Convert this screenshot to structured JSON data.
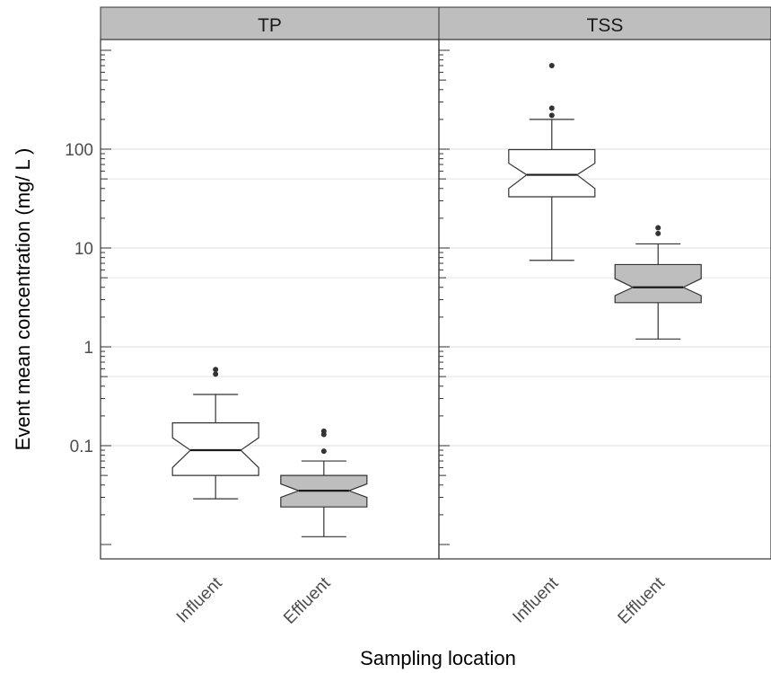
{
  "chart_data": {
    "type": "boxplot",
    "notched": true,
    "x_title": "Sampling location",
    "y_title": "Event mean concentration (mg/ L )",
    "y_scale": "log10",
    "ylim": [
      0.0095,
      1300
    ],
    "y_ticks": [
      0.1,
      1,
      10,
      100
    ],
    "y_tick_labels": [
      "0.1",
      "1",
      "10",
      "100"
    ],
    "categories": [
      "Influent",
      "Effluent"
    ],
    "colors": {
      "Influent": "#ffffff",
      "Effluent": "#bebebe",
      "strip": "#bebebe",
      "grid": "#e3e3e3",
      "line": "#333333"
    },
    "panels": [
      {
        "title": "TP",
        "boxes": [
          {
            "category": "Influent",
            "whisker_low": 0.029,
            "q1": 0.05,
            "median": 0.09,
            "q3": 0.17,
            "whisker_high": 0.33,
            "notch_low": 0.06,
            "notch_high": 0.12,
            "outliers": [
              0.53,
              0.59
            ]
          },
          {
            "category": "Effluent",
            "whisker_low": 0.012,
            "q1": 0.024,
            "median": 0.035,
            "q3": 0.05,
            "whisker_high": 0.07,
            "notch_low": 0.03,
            "notch_high": 0.041,
            "outliers": [
              0.088,
              0.13,
              0.14
            ]
          }
        ]
      },
      {
        "title": "TSS",
        "boxes": [
          {
            "category": "Influent",
            "whisker_low": 7.5,
            "q1": 33,
            "median": 55,
            "q3": 99,
            "whisker_high": 200,
            "notch_low": 40,
            "notch_high": 72,
            "outliers": [
              220,
              260,
              700
            ]
          },
          {
            "category": "Effluent",
            "whisker_low": 1.2,
            "q1": 2.8,
            "median": 4.0,
            "q3": 6.8,
            "whisker_high": 11,
            "notch_low": 3.3,
            "notch_high": 4.9,
            "outliers": [
              14,
              16
            ]
          }
        ]
      }
    ]
  }
}
